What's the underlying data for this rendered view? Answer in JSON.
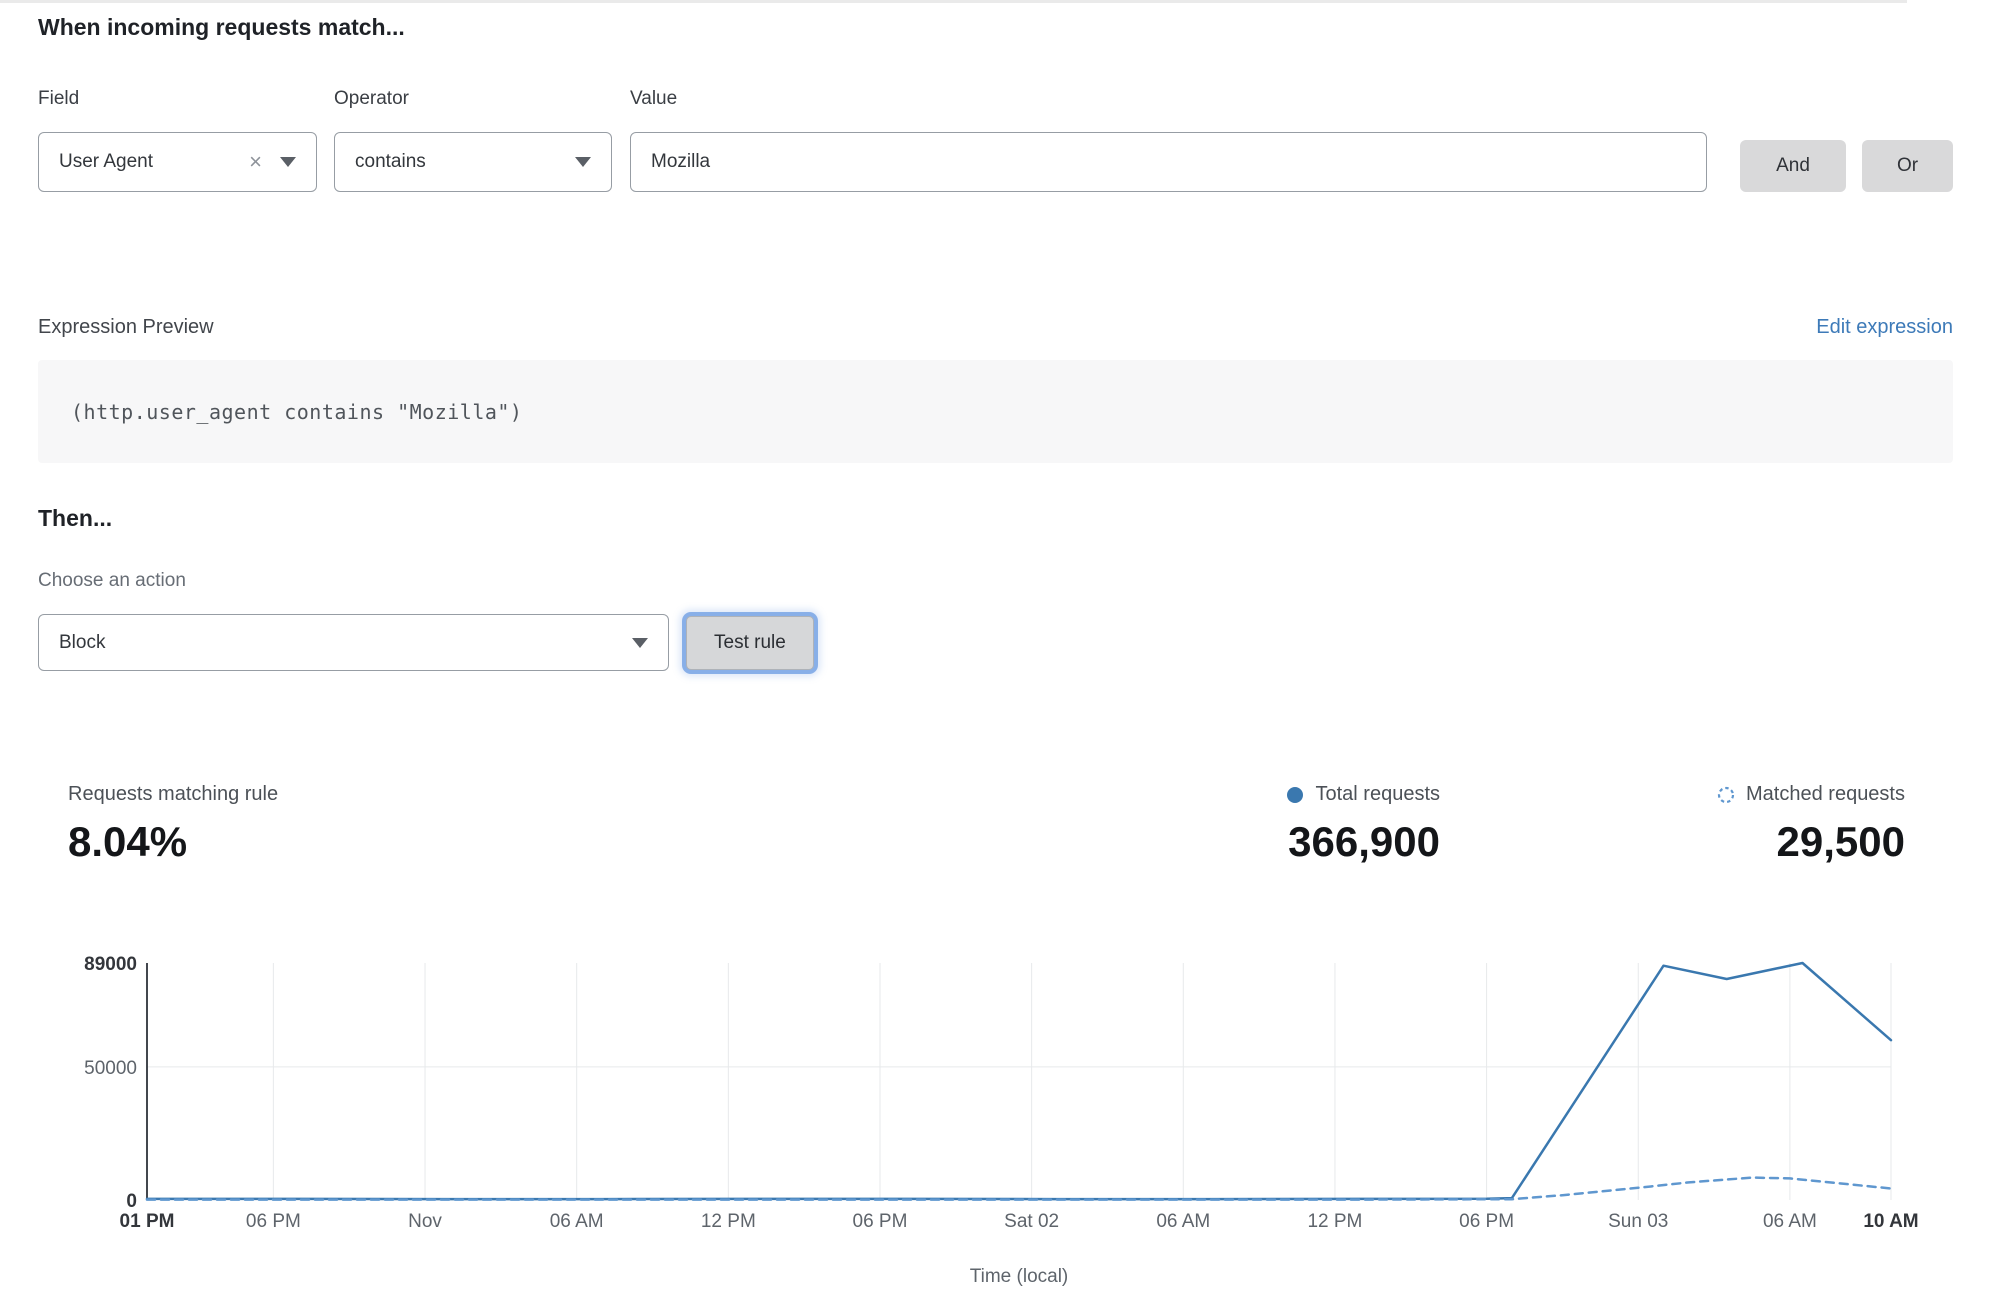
{
  "rule_builder": {
    "title": "When incoming requests match...",
    "field": {
      "label": "Field",
      "value": "User Agent"
    },
    "operator": {
      "label": "Operator",
      "value": "contains"
    },
    "value_field": {
      "label": "Value",
      "value": "Mozilla"
    },
    "and_label": "And",
    "or_label": "Or"
  },
  "expression": {
    "label": "Expression Preview",
    "edit_link": "Edit expression",
    "code": "(http.user_agent contains \"Mozilla\")"
  },
  "action": {
    "title": "Then...",
    "choose_label": "Choose an action",
    "selected": "Block",
    "test_button": "Test rule"
  },
  "stats": {
    "matching": {
      "label": "Requests matching rule",
      "value": "8.04%"
    },
    "total": {
      "label": "Total requests",
      "value": "366,900"
    },
    "matched": {
      "label": "Matched requests",
      "value": "29,500"
    }
  },
  "icons": {
    "clear": "×"
  },
  "colors": {
    "link_blue": "#3d7ab8",
    "total_line": "#3a78af",
    "matched_line": "#5f97cf",
    "button_gray": "#d9d9da",
    "focus_ring": "#7ea8e6"
  },
  "chart_data": {
    "type": "line",
    "title": "",
    "xlabel": "Time (local)",
    "ylabel": "",
    "ylim": [
      0,
      89000
    ],
    "x_span_hours": 69,
    "grid": true,
    "legend_position": "top-right",
    "yticks": [
      {
        "value": 89000,
        "label": "89000",
        "bold": true
      },
      {
        "value": 50000,
        "label": "50000",
        "bold": false
      },
      {
        "value": 0,
        "label": "0",
        "bold": true
      }
    ],
    "xticks": [
      {
        "hour": 0,
        "label": "01 PM",
        "bold": true
      },
      {
        "hour": 5,
        "label": "06 PM",
        "bold": false
      },
      {
        "hour": 11,
        "label": "Nov",
        "bold": false
      },
      {
        "hour": 17,
        "label": "06 AM",
        "bold": false
      },
      {
        "hour": 23,
        "label": "12 PM",
        "bold": false
      },
      {
        "hour": 29,
        "label": "06 PM",
        "bold": false
      },
      {
        "hour": 35,
        "label": "Sat 02",
        "bold": false
      },
      {
        "hour": 41,
        "label": "06 AM",
        "bold": false
      },
      {
        "hour": 47,
        "label": "12 PM",
        "bold": false
      },
      {
        "hour": 53,
        "label": "06 PM",
        "bold": false
      },
      {
        "hour": 59,
        "label": "Sun 03",
        "bold": false
      },
      {
        "hour": 65,
        "label": "06 AM",
        "bold": false
      },
      {
        "hour": 69,
        "label": "10 AM",
        "bold": true
      }
    ],
    "series": [
      {
        "name": "Total requests",
        "style": "solid",
        "color": "#3a78af",
        "points": [
          [
            0,
            400
          ],
          [
            6,
            400
          ],
          [
            12,
            350
          ],
          [
            18,
            350
          ],
          [
            24,
            400
          ],
          [
            30,
            400
          ],
          [
            36,
            350
          ],
          [
            42,
            350
          ],
          [
            48,
            400
          ],
          [
            53,
            450
          ],
          [
            54,
            700
          ],
          [
            60,
            88000
          ],
          [
            62.5,
            83000
          ],
          [
            65.5,
            89000
          ],
          [
            69,
            60000
          ]
        ]
      },
      {
        "name": "Matched requests",
        "style": "dashed",
        "color": "#5f97cf",
        "points": [
          [
            0,
            150
          ],
          [
            12,
            150
          ],
          [
            24,
            150
          ],
          [
            36,
            150
          ],
          [
            48,
            150
          ],
          [
            54,
            300
          ],
          [
            56,
            1800
          ],
          [
            59,
            4600
          ],
          [
            61,
            6600
          ],
          [
            63.5,
            8400
          ],
          [
            65,
            8100
          ],
          [
            69,
            4300
          ]
        ]
      }
    ]
  }
}
